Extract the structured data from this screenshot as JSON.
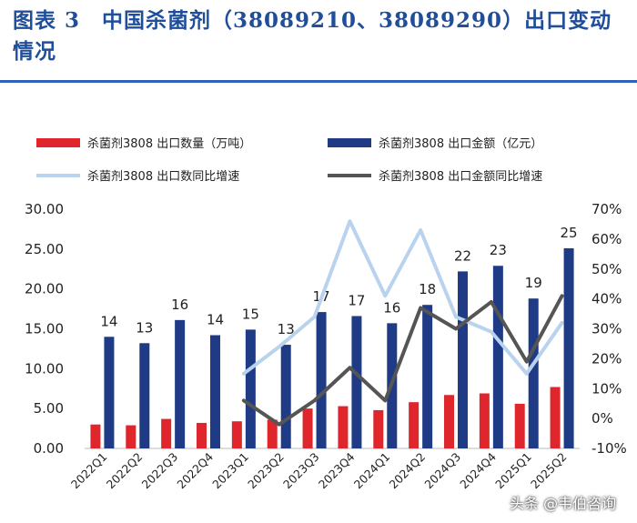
{
  "title": "图表 3　中国杀菌剂（38089210、38089290）出口变动情况",
  "legend": {
    "qty": "杀菌剂3808 出口数量（万吨）",
    "amt": "杀菌剂3808 出口金额（亿元）",
    "qty_yoy": "杀菌剂3808 出口数同比增速",
    "amt_yoy": "杀菌剂3808 出口金额同比增速"
  },
  "watermark": "头条 @韦伯咨询",
  "colors": {
    "qty": "#e0262d",
    "amt": "#1f3b86",
    "qty_yoy": "#b9d3ee",
    "amt_yoy": "#555555"
  },
  "chart_data": {
    "type": "bar",
    "categories": [
      "2022Q1",
      "2022Q2",
      "2022Q3",
      "2022Q4",
      "2023Q1",
      "2023Q2",
      "2023Q3",
      "2023Q4",
      "2024Q1",
      "2024Q2",
      "2024Q3",
      "2024Q4",
      "2025Q1",
      "2025Q2"
    ],
    "y_left": {
      "ylim": [
        0,
        30
      ],
      "ticks": [
        "0.00",
        "5.00",
        "10.00",
        "15.00",
        "20.00",
        "25.00",
        "30.00"
      ]
    },
    "y_right": {
      "ylim": [
        -10,
        70
      ],
      "ticks": [
        "-10%",
        "0%",
        "10%",
        "20%",
        "30%",
        "40%",
        "50%",
        "60%",
        "70%"
      ]
    },
    "series": [
      {
        "name": "杀菌剂3808 出口数量（万吨）",
        "kind": "bar",
        "axis": "left",
        "values": [
          3.0,
          2.9,
          3.7,
          3.2,
          3.4,
          3.6,
          5.0,
          5.3,
          4.8,
          5.8,
          6.7,
          6.9,
          5.6,
          7.7
        ]
      },
      {
        "name": "杀菌剂3808 出口金额（亿元）",
        "kind": "bar",
        "axis": "left",
        "values": [
          14.0,
          13.2,
          16.1,
          14.2,
          14.9,
          13.0,
          17.1,
          16.6,
          15.7,
          18.0,
          22.2,
          22.9,
          18.8,
          25.1
        ],
        "labels": [
          "14",
          "13",
          "16",
          "14",
          "15",
          "13",
          "17",
          "17",
          "16",
          "18",
          "22",
          "23",
          "19",
          "25"
        ]
      },
      {
        "name": "杀菌剂3808 出口数同比增速",
        "kind": "line",
        "axis": "right",
        "values": [
          null,
          null,
          null,
          null,
          15,
          24,
          34,
          66,
          41,
          63,
          34,
          29,
          15,
          32
        ]
      },
      {
        "name": "杀菌剂3808 出口金额同比增速",
        "kind": "line",
        "axis": "right",
        "values": [
          null,
          null,
          null,
          null,
          6,
          -2,
          6,
          17,
          6,
          37,
          30,
          39,
          19,
          41
        ]
      }
    ]
  }
}
